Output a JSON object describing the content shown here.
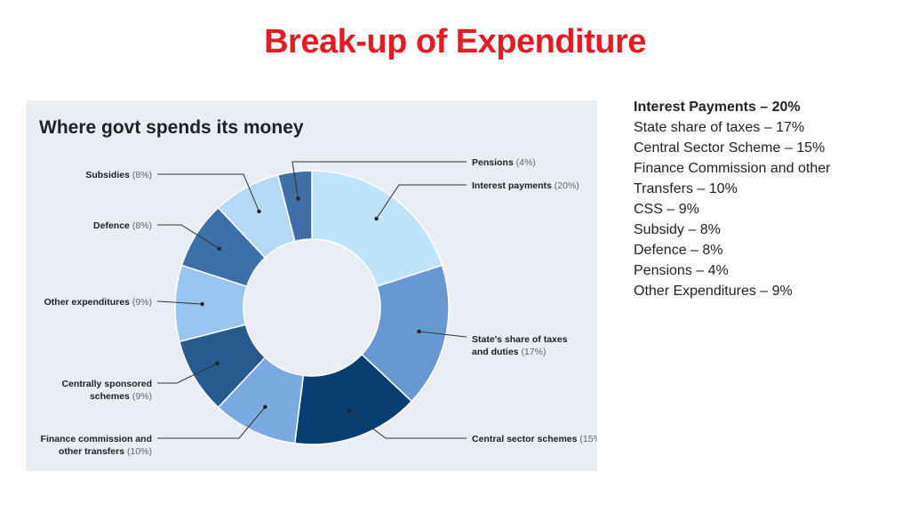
{
  "slide": {
    "title": "Break-up of Expenditure"
  },
  "summary_lines": [
    "Interest Payments – 20%",
    "State share of taxes – 17%",
    "Central Sector Scheme – 15%",
    "Finance Commission and other",
    "Transfers – 10%",
    "CSS – 9%",
    "Subsidy – 8%",
    "Defence – 8%",
    "Pensions – 4%",
    "Other Expenditures – 9%"
  ],
  "chart_data": {
    "type": "pie",
    "donut": true,
    "title": "Where govt spends its money",
    "slices": [
      {
        "label": [
          "Interest payments"
        ],
        "pct_text": "(20%)",
        "value": 20,
        "color": "#bfe3fa",
        "label_side": "right"
      },
      {
        "label": [
          "State's share of taxes",
          "and duties"
        ],
        "pct_text": "(17%)",
        "value": 17,
        "color": "#6898cf",
        "label_side": "right"
      },
      {
        "label": [
          "Central sector schemes"
        ],
        "pct_text": "(15%)",
        "value": 15,
        "color": "#063e72",
        "label_side": "right"
      },
      {
        "label": [
          "Finance commission and",
          "other transfers"
        ],
        "pct_text": "(10%)",
        "value": 10,
        "color": "#7aaae0",
        "label_side": "left"
      },
      {
        "label": [
          "Centrally sponsored",
          "schemes"
        ],
        "pct_text": "(9%)",
        "value": 9,
        "color": "#275a8e",
        "label_side": "left"
      },
      {
        "label": [
          "Other expenditures"
        ],
        "pct_text": "(9%)",
        "value": 9,
        "color": "#98c6f0",
        "label_side": "left"
      },
      {
        "label": [
          "Defence"
        ],
        "pct_text": "(8%)",
        "value": 8,
        "color": "#3d6fa8",
        "label_side": "left"
      },
      {
        "label": [
          "Subsidies"
        ],
        "pct_text": "(8%)",
        "value": 8,
        "color": "#b4daf8",
        "label_side": "left"
      },
      {
        "label": [
          "Pensions"
        ],
        "pct_text": "(4%)",
        "value": 4,
        "color": "#3f6fa4",
        "label_side": "right"
      }
    ]
  }
}
